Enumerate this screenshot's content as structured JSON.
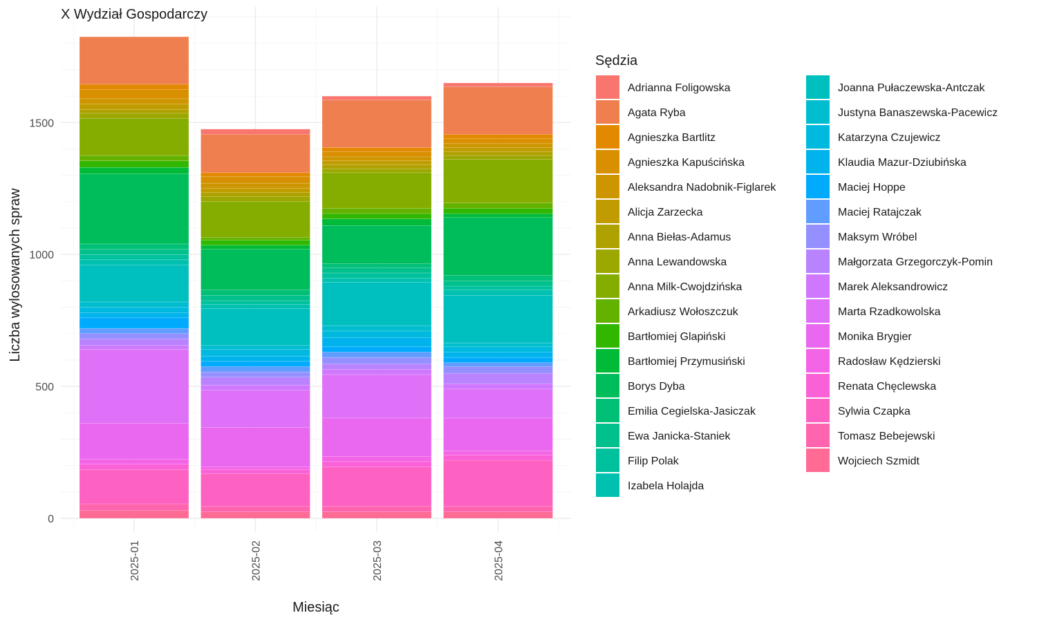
{
  "chart_data": {
    "type": "bar",
    "stacked": true,
    "title": "X Wydział Gospodarczy",
    "xlabel": "Miesiąc",
    "ylabel": "Liczba wylosowanych spraw",
    "ylim": [
      0,
      1900
    ],
    "yticks": [
      0,
      500,
      1000,
      1500
    ],
    "grid": true,
    "legend_title": "Sędzia",
    "legend_position": "right",
    "categories": [
      "2025-01",
      "2025-02",
      "2025-03",
      "2025-04"
    ],
    "series": [
      {
        "name": "Adrianna Foligowska",
        "color": "#F8766D",
        "values": [
          0,
          20,
          15,
          15
        ]
      },
      {
        "name": "Agata Ryba",
        "color": "#EF7F4F",
        "values": [
          180,
          145,
          180,
          180
        ]
      },
      {
        "name": "Agnieszka Bartlitz",
        "color": "#E38900",
        "values": [
          20,
          15,
          15,
          15
        ]
      },
      {
        "name": "Agnieszka Kapuścińska",
        "color": "#D89000",
        "values": [
          35,
          25,
          20,
          20
        ]
      },
      {
        "name": "Aleksandra Nadobnik-Figlarek",
        "color": "#CD9600",
        "values": [
          20,
          20,
          15,
          15
        ]
      },
      {
        "name": "Alicja Zarzecka",
        "color": "#C19C00",
        "values": [
          20,
          15,
          15,
          15
        ]
      },
      {
        "name": "Anna Biełas-Adamus",
        "color": "#AFA100",
        "values": [
          15,
          15,
          15,
          15
        ]
      },
      {
        "name": "Anna Lewandowska",
        "color": "#9CA700",
        "values": [
          20,
          20,
          15,
          15
        ]
      },
      {
        "name": "Anna Milk-Cwojdzińska",
        "color": "#84AD00",
        "values": [
          140,
          135,
          135,
          165
        ]
      },
      {
        "name": "Arkadiusz Wołoszczuk",
        "color": "#64B200",
        "values": [
          20,
          10,
          20,
          20
        ]
      },
      {
        "name": "Bartłomiej Glapiński",
        "color": "#31B700",
        "values": [
          25,
          20,
          20,
          20
        ]
      },
      {
        "name": "Bartłomiej Przymusiński",
        "color": "#00BA38",
        "values": [
          25,
          15,
          25,
          15
        ]
      },
      {
        "name": "Borys Dyba",
        "color": "#00BD5C",
        "values": [
          265,
          155,
          145,
          220
        ]
      },
      {
        "name": "Emilia Cegielska-Jasiczak",
        "color": "#00BF76",
        "values": [
          20,
          20,
          15,
          20
        ]
      },
      {
        "name": "Ewa Janicka-Staniek",
        "color": "#00C08B",
        "values": [
          20,
          20,
          20,
          20
        ]
      },
      {
        "name": "Filip Polak",
        "color": "#00C19E",
        "values": [
          20,
          15,
          20,
          15
        ]
      },
      {
        "name": "Izabela Holajda",
        "color": "#00C1AF",
        "values": [
          20,
          15,
          15,
          20
        ]
      },
      {
        "name": "Joanna Pułaczewska-Antczak",
        "color": "#00C0BF",
        "values": [
          140,
          140,
          165,
          180
        ]
      },
      {
        "name": "Justyna Banaszewska-Pacewicz",
        "color": "#00BDD0",
        "values": [
          20,
          15,
          20,
          15
        ]
      },
      {
        "name": "Katarzyna Czujewicz",
        "color": "#00B9DF",
        "values": [
          20,
          25,
          25,
          20
        ]
      },
      {
        "name": "Klaudia Mazur-Dziubińska",
        "color": "#00B3EC",
        "values": [
          20,
          20,
          35,
          20
        ]
      },
      {
        "name": "Maciej Hoppe",
        "color": "#00ABFD",
        "values": [
          40,
          20,
          20,
          20
        ]
      },
      {
        "name": "Maciej Ratajczak",
        "color": "#619CFF",
        "values": [
          20,
          20,
          20,
          15
        ]
      },
      {
        "name": "Maksym Wróbel",
        "color": "#9590FF",
        "values": [
          20,
          20,
          25,
          25
        ]
      },
      {
        "name": "Małgorzata Grzegorczyk-Pomin",
        "color": "#B983FF",
        "values": [
          25,
          30,
          20,
          40
        ]
      },
      {
        "name": "Marek Aleksandrowicz",
        "color": "#CF78FF",
        "values": [
          15,
          20,
          20,
          20
        ]
      },
      {
        "name": "Marta Rzadkowolska",
        "color": "#DF70F8",
        "values": [
          280,
          140,
          165,
          110
        ]
      },
      {
        "name": "Monika Brygier",
        "color": "#EA68EF",
        "values": [
          135,
          150,
          145,
          125
        ]
      },
      {
        "name": "Radosław Kędzierski",
        "color": "#F365E6",
        "values": [
          20,
          10,
          20,
          15
        ]
      },
      {
        "name": "Renata Chęclewska",
        "color": "#FA61D7",
        "values": [
          20,
          15,
          20,
          20
        ]
      },
      {
        "name": "Sylwia Czapka",
        "color": "#FD61C2",
        "values": [
          130,
          125,
          150,
          175
        ]
      },
      {
        "name": "Tomasz Bebejewski",
        "color": "#FF64AE",
        "values": [
          25,
          20,
          20,
          20
        ]
      },
      {
        "name": "Wojciech Szmidt",
        "color": "#FF6B94",
        "values": [
          30,
          25,
          25,
          25
        ]
      }
    ]
  }
}
